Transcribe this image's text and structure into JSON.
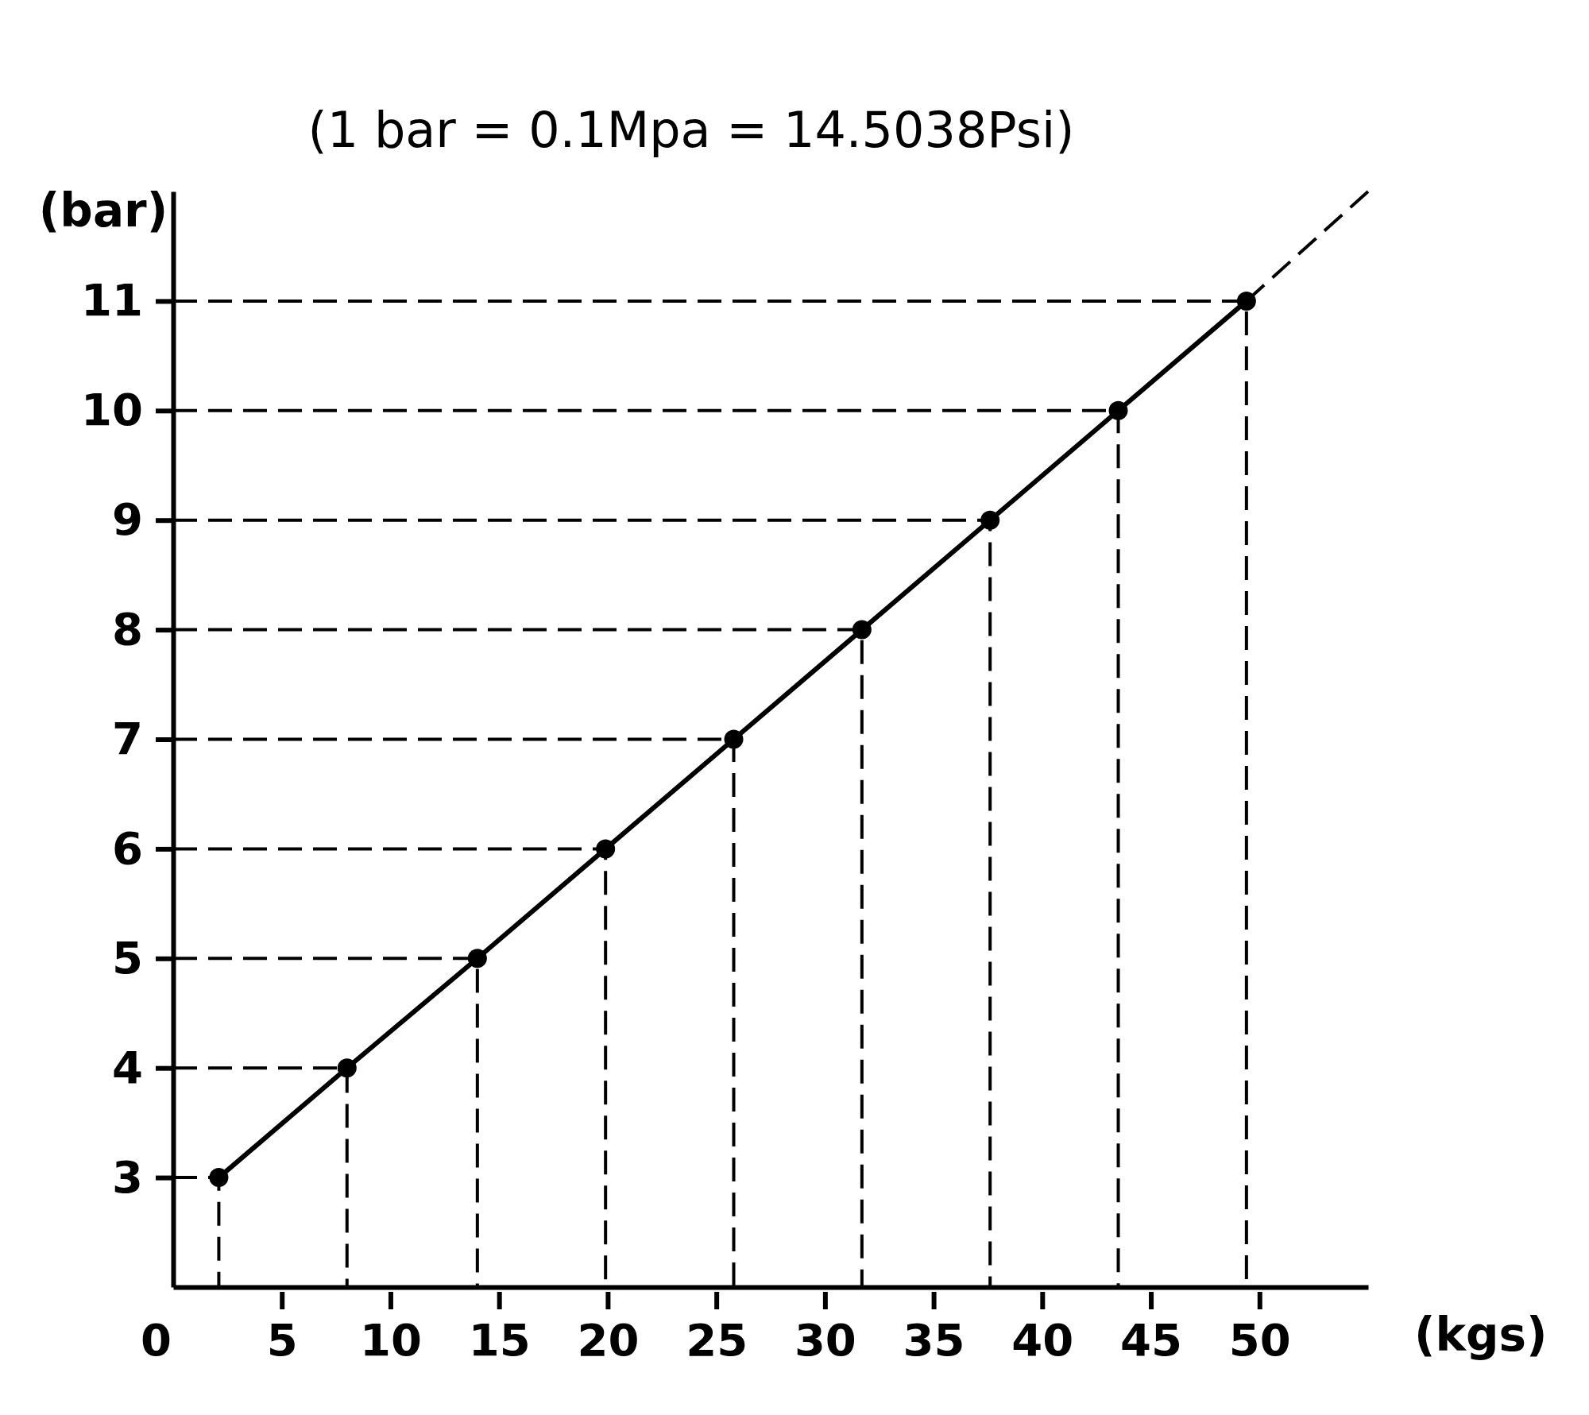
{
  "chart_data": {
    "type": "line",
    "title": "(1 bar = 0.1Mpa = 14.5038Psi)",
    "xlabel": "(kgs)",
    "ylabel": "(bar)",
    "xlim": [
      0,
      55
    ],
    "ylim": [
      2,
      12
    ],
    "xticks": [
      {
        "value": 0,
        "label": "0"
      },
      5,
      10,
      15,
      20,
      25,
      30,
      35,
      40,
      45,
      50
    ],
    "yticks": [
      3,
      4,
      5,
      6,
      7,
      8,
      9,
      10,
      11
    ],
    "series": [
      {
        "color": "#000000",
        "marker": "circle",
        "line_style": "solid",
        "x": [
          2.1,
          8,
          14,
          19.9,
          25.8,
          31.7,
          37.6,
          43.5,
          49.4
        ],
        "values": [
          3,
          4,
          5,
          6,
          7,
          8,
          9,
          10,
          11
        ]
      },
      {
        "color": "#000000",
        "marker": "none",
        "line_style": "dashed",
        "x": [
          49.4,
          55
        ],
        "values": [
          11,
          12
        ]
      },
      {
        "color": "#000000",
        "marker": "none",
        "line_style": "dashed",
        "x": [
          0,
          2.1,
          2.1
        ],
        "values": [
          3,
          3,
          2
        ]
      },
      {
        "color": "#000000",
        "marker": "none",
        "line_style": "dashed",
        "x": [
          0,
          8,
          8
        ],
        "values": [
          4,
          4,
          2
        ]
      },
      {
        "color": "#000000",
        "marker": "none",
        "line_style": "dashed",
        "x": [
          0,
          14,
          14
        ],
        "values": [
          5,
          5,
          2
        ]
      },
      {
        "color": "#000000",
        "marker": "none",
        "line_style": "dashed",
        "x": [
          0,
          19.9,
          19.9
        ],
        "values": [
          6,
          6,
          2
        ]
      },
      {
        "color": "#000000",
        "marker": "none",
        "line_style": "dashed",
        "x": [
          0,
          25.8,
          25.8
        ],
        "values": [
          7,
          7,
          2
        ]
      },
      {
        "color": "#000000",
        "marker": "none",
        "line_style": "dashed",
        "x": [
          0,
          31.7,
          31.7
        ],
        "values": [
          8,
          8,
          2
        ]
      },
      {
        "color": "#000000",
        "marker": "none",
        "line_style": "dashed",
        "x": [
          0,
          37.6,
          37.6
        ],
        "values": [
          9,
          9,
          2
        ]
      },
      {
        "color": "#000000",
        "marker": "none",
        "line_style": "dashed",
        "x": [
          0,
          43.5,
          43.5
        ],
        "values": [
          10,
          10,
          2
        ]
      },
      {
        "color": "#000000",
        "marker": "none",
        "line_style": "dashed",
        "x": [
          0,
          49.4,
          49.4
        ],
        "values": [
          11,
          11,
          2
        ]
      }
    ]
  }
}
